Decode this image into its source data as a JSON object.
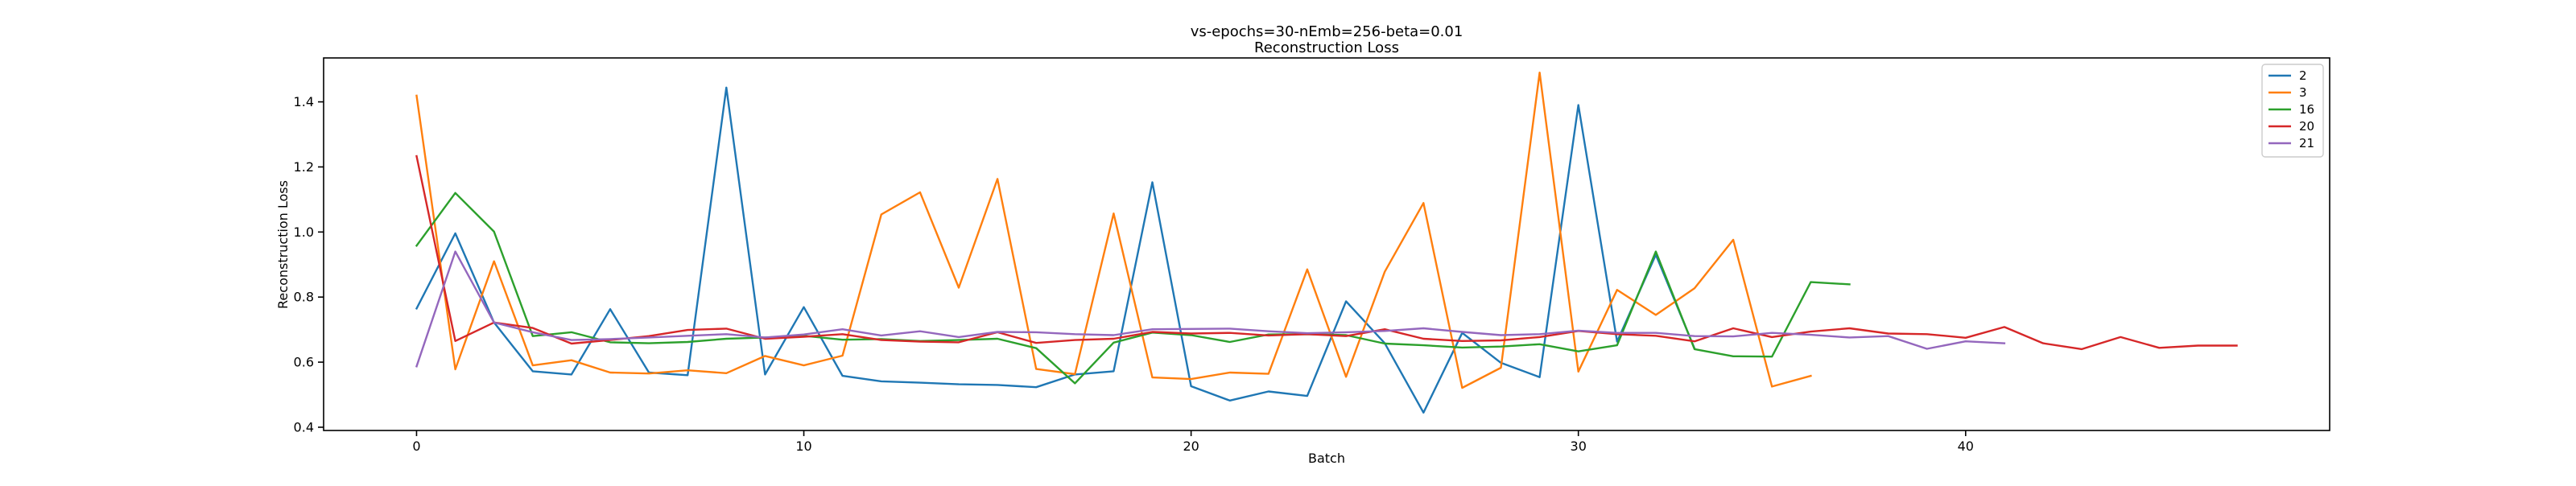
{
  "chart_data": {
    "type": "line",
    "title": "vs-epochs=30-nEmb=256-beta=0.01",
    "subtitle": "Reconstruction Loss",
    "xlabel": "Batch",
    "ylabel": "Reconstruction Loss",
    "xlim": [
      -2.4,
      49.4
    ],
    "ylim": [
      0.39,
      1.535
    ],
    "xticks": [
      0,
      10,
      20,
      30,
      40
    ],
    "xtick_labels": [
      "0",
      "10",
      "20",
      "30",
      "40"
    ],
    "yticks": [
      0.4,
      0.6,
      0.8,
      1.0,
      1.2,
      1.4
    ],
    "ytick_labels": [
      "0.4",
      "0.6",
      "0.8",
      "1.0",
      "1.2",
      "1.4"
    ],
    "grid": false,
    "legend_position": "top-right",
    "series": [
      {
        "name": "2",
        "color": "#1f77b4",
        "values": [
          0.765,
          0.996,
          0.722,
          0.572,
          0.562,
          0.763,
          0.568,
          0.56,
          1.444,
          0.562,
          0.769,
          0.558,
          0.541,
          0.537,
          0.532,
          0.53,
          0.523,
          0.562,
          0.572,
          1.153,
          0.526,
          0.482,
          0.51,
          0.496,
          0.787,
          0.658,
          0.445,
          0.69,
          0.598,
          0.554,
          1.39,
          0.663,
          0.93,
          0.642
        ]
      },
      {
        "name": "3",
        "color": "#ff7f0e",
        "values": [
          1.419,
          0.578,
          0.91,
          0.59,
          0.606,
          0.568,
          0.565,
          0.575,
          0.566,
          0.619,
          0.59,
          0.62,
          1.054,
          1.122,
          0.829,
          1.163,
          0.579,
          0.563,
          1.057,
          0.553,
          0.548,
          0.568,
          0.564,
          0.885,
          0.555,
          0.878,
          1.089,
          0.521,
          0.583,
          1.49,
          0.571,
          0.822,
          0.745,
          0.827,
          0.976,
          0.525,
          0.558
        ]
      },
      {
        "name": "16",
        "color": "#2ca02c",
        "values": [
          0.958,
          1.12,
          1.001,
          0.68,
          0.692,
          0.661,
          0.658,
          0.662,
          0.672,
          0.676,
          0.681,
          0.669,
          0.671,
          0.665,
          0.668,
          0.672,
          0.643,
          0.535,
          0.66,
          0.691,
          0.683,
          0.662,
          0.685,
          0.686,
          0.683,
          0.657,
          0.652,
          0.645,
          0.648,
          0.655,
          0.633,
          0.652,
          0.94,
          0.64,
          0.618,
          0.617,
          0.846,
          0.839
        ]
      },
      {
        "name": "20",
        "color": "#d62728",
        "values": [
          1.233,
          0.665,
          0.722,
          0.705,
          0.657,
          0.668,
          0.68,
          0.699,
          0.703,
          0.672,
          0.678,
          0.686,
          0.668,
          0.663,
          0.661,
          0.692,
          0.659,
          0.668,
          0.672,
          0.693,
          0.688,
          0.69,
          0.682,
          0.686,
          0.68,
          0.701,
          0.672,
          0.665,
          0.667,
          0.677,
          0.696,
          0.686,
          0.681,
          0.664,
          0.704,
          0.677,
          0.694,
          0.704,
          0.688,
          0.686,
          0.675,
          0.708,
          0.658,
          0.64,
          0.677,
          0.644,
          0.651,
          0.651
        ]
      },
      {
        "name": "21",
        "color": "#9467bd",
        "values": [
          0.587,
          0.94,
          0.722,
          0.692,
          0.668,
          0.671,
          0.676,
          0.681,
          0.686,
          0.676,
          0.685,
          0.701,
          0.682,
          0.695,
          0.677,
          0.693,
          0.692,
          0.686,
          0.683,
          0.701,
          0.702,
          0.703,
          0.695,
          0.689,
          0.692,
          0.696,
          0.704,
          0.693,
          0.683,
          0.686,
          0.697,
          0.69,
          0.69,
          0.68,
          0.679,
          0.69,
          0.684,
          0.676,
          0.68,
          0.641,
          0.664,
          0.658
        ]
      }
    ]
  }
}
